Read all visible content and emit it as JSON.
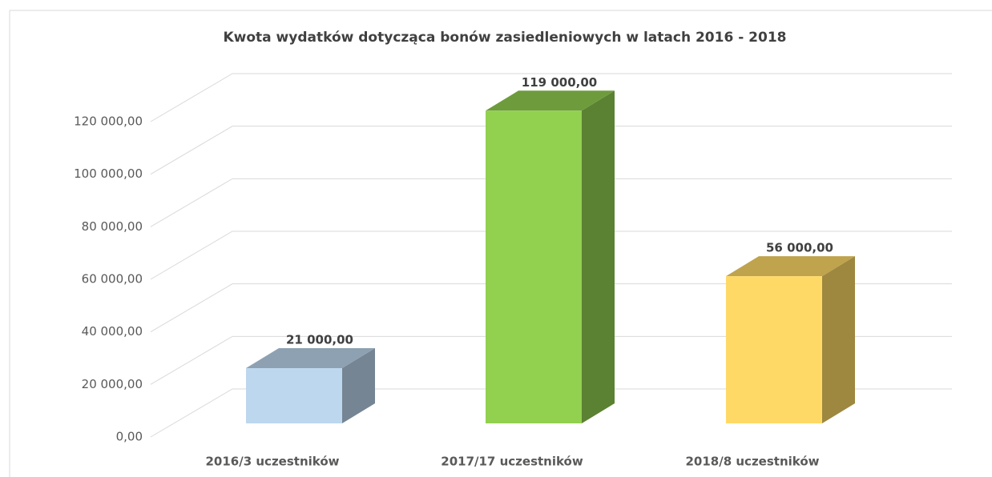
{
  "chart_data": {
    "type": "bar3d",
    "title": "Kwota wydatków dotycząca bonów zasiedleniowych w latach 2016 - 2018",
    "categories": [
      "2016/3 uczestników",
      "2017/17 uczestników",
      "2018/8 uczestników"
    ],
    "values": [
      21000,
      119000,
      56000
    ],
    "value_labels": [
      "21 000,00",
      "119 000,00",
      "56 000,00"
    ],
    "colors": [
      "#bdd7ee",
      "#92d050",
      "#ffd966"
    ],
    "ylim": [
      0,
      120000
    ],
    "yticks": [
      {
        "value": 0,
        "label": "0,00"
      },
      {
        "value": 20000,
        "label": "20 000,00"
      },
      {
        "value": 40000,
        "label": "40 000,00"
      },
      {
        "value": 60000,
        "label": "60 000,00"
      },
      {
        "value": 80000,
        "label": "80 000,00"
      },
      {
        "value": 100000,
        "label": "100 000,00"
      },
      {
        "value": 120000,
        "label": "120 000,00"
      }
    ],
    "grid": true
  }
}
